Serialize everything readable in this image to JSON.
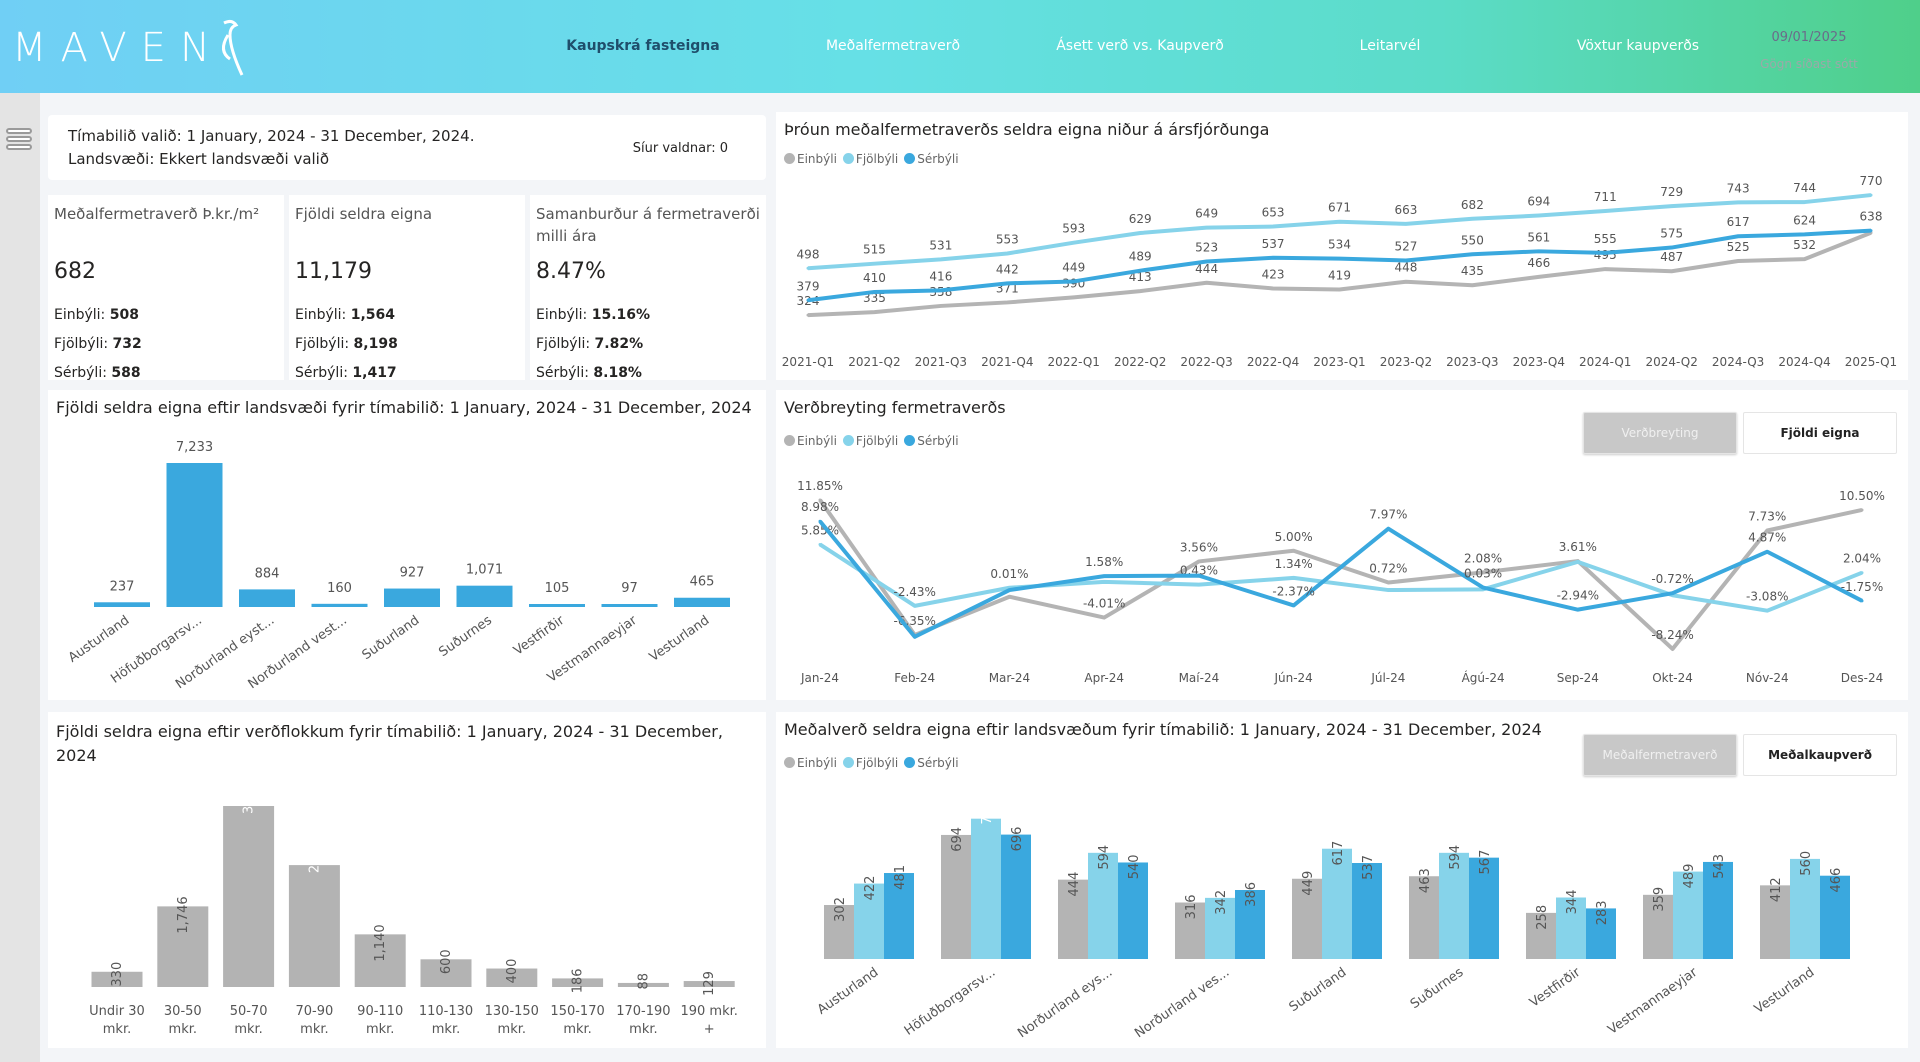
{
  "header": {
    "logo": "MAVEN",
    "nav": [
      {
        "label": "Kaupskrá fasteigna",
        "active": true
      },
      {
        "label": "Meðalfermetraverð"
      },
      {
        "label": "Ásett verð vs. Kaupverð"
      },
      {
        "label": "Leitarvél"
      },
      {
        "label": "Vöxtur kaupverðs"
      }
    ],
    "date": "09/01/2025",
    "date_caption": "Gögn síðast sótt"
  },
  "info": {
    "period": "Tímabilið valið: 1 January, 2024 - 31 December, 2024.",
    "region": "Landsvæði: Ekkert landsvæði valið",
    "filters": "Síur valdnar: 0"
  },
  "kpis": [
    {
      "title": "Meðalfermetraverð Þ.kr./m²",
      "value": "682",
      "rows": [
        {
          "k": "Einbýli:",
          "v": "508"
        },
        {
          "k": "Fjölbýli:",
          "v": "732"
        },
        {
          "k": "Sérbýli:",
          "v": "588"
        }
      ]
    },
    {
      "title": "Fjöldi seldra eigna",
      "value": "11,179",
      "rows": [
        {
          "k": "Einbýli:",
          "v": "1,564"
        },
        {
          "k": "Fjölbýli:",
          "v": "8,198"
        },
        {
          "k": "Sérbýli:",
          "v": "1,417"
        }
      ]
    },
    {
      "title": "Samanburður á fermetraverði milli ára",
      "value": "8.47%",
      "rows": [
        {
          "k": "Einbýli:",
          "v": "15.16%"
        },
        {
          "k": "Fjölbýli:",
          "v": "7.82%"
        },
        {
          "k": "Sérbýli:",
          "v": "8.18%"
        }
      ]
    }
  ],
  "colors": {
    "Einbýli": "#b4b4b4",
    "Fjölbýli": "#86d3ea",
    "Sérbýli": "#3aa8de",
    "bucket": "#b3b3b3"
  },
  "legend": [
    "Einbýli",
    "Fjölbýli",
    "Sérbýli"
  ],
  "toggles": {
    "change": {
      "on": "Verðbreyting",
      "off": "Fjöldi eigna"
    },
    "avg": {
      "on": "Meðalfermetraverð",
      "off": "Meðalkaupverð"
    }
  },
  "chart_data": [
    {
      "id": "quarterly",
      "type": "line",
      "title": "Þróun meðalfermetraverðs seldra eigna niður á ársfjórðunga",
      "categories": [
        "2021-Q1",
        "2021-Q2",
        "2021-Q3",
        "2021-Q4",
        "2022-Q1",
        "2022-Q2",
        "2022-Q3",
        "2022-Q4",
        "2023-Q1",
        "2023-Q2",
        "2023-Q3",
        "2023-Q4",
        "2024-Q1",
        "2024-Q2",
        "2024-Q3",
        "2024-Q4",
        "2025-Q1"
      ],
      "ylim": [
        250,
        800
      ],
      "legend": "top-left",
      "grid": false,
      "series": [
        {
          "name": "Einbýli",
          "values": [
            324,
            335,
            358,
            371,
            390,
            413,
            444,
            423,
            419,
            448,
            435,
            466,
            495,
            487,
            525,
            532,
            630
          ],
          "labels": [
            "324",
            "335",
            "358",
            "371",
            "390",
            "413",
            "444",
            "423",
            "419",
            "448",
            "435",
            "466",
            "495",
            "487",
            "525",
            "532",
            null
          ]
        },
        {
          "name": "Fjölbýli",
          "values": [
            498,
            515,
            531,
            553,
            593,
            629,
            649,
            653,
            671,
            663,
            682,
            694,
            711,
            729,
            743,
            744,
            770
          ]
        },
        {
          "name": "Sérbýli",
          "values": [
            379,
            410,
            416,
            442,
            449,
            489,
            523,
            537,
            534,
            527,
            550,
            561,
            555,
            575,
            617,
            624,
            638
          ]
        }
      ]
    },
    {
      "id": "monthly",
      "type": "line",
      "title": "Verðbreyting fermetraverðs",
      "categories": [
        "Jan-24",
        "Feb-24",
        "Mar-24",
        "Apr-24",
        "Maí-24",
        "Jún-24",
        "Júl-24",
        "Ágú-24",
        "Sep-24",
        "Okt-24",
        "Nóv-24",
        "Des-24"
      ],
      "ylim": [
        -10,
        14
      ],
      "unit": "%",
      "legend": "top-left",
      "grid": false,
      "series": [
        {
          "name": "Einbýli",
          "values": [
            11.85,
            -6.35,
            -1.2,
            -4.01,
            3.56,
            5.0,
            0.72,
            2.08,
            3.61,
            -8.24,
            7.73,
            10.5
          ],
          "labels": [
            "11.85%",
            "-6.35%",
            null,
            "-4.01%",
            "3.56%",
            "5.00%",
            "0.72%",
            "2.08%",
            "3.61%",
            "-8.24%",
            "7.73%",
            "10.50%"
          ]
        },
        {
          "name": "Fjölbýli",
          "values": [
            5.85,
            -2.43,
            0.01,
            0.8,
            0.43,
            1.34,
            -0.3,
            -0.2,
            3.5,
            -1.0,
            -3.08,
            2.04
          ],
          "labels": [
            "5.85%",
            "-2.43%",
            "0.01%",
            null,
            "0.43%",
            "1.34%",
            null,
            null,
            null,
            null,
            "-3.08%",
            "2.04%"
          ]
        },
        {
          "name": "Sérbýli",
          "values": [
            8.98,
            -6.6,
            -0.3,
            1.58,
            1.65,
            -2.37,
            7.97,
            0.03,
            -2.94,
            -0.72,
            4.87,
            -1.75
          ],
          "labels": [
            "8.98%",
            null,
            null,
            "1.58%",
            null,
            "-2.37%",
            "7.97%",
            "0.03%",
            "-2.94%",
            "-0.72%",
            "4.87%",
            "-1.75%"
          ]
        }
      ]
    },
    {
      "id": "regionCount",
      "type": "bar",
      "title": "Fjöldi seldra eigna eftir landsvæði fyrir tímabilið: 1 January, 2024 - 31 December, 2024",
      "categories": [
        "Austurland",
        "Höfuðborgarsv...",
        "Norðurland eyst...",
        "Norðurland vest...",
        "Suðurland",
        "Suðurnes",
        "Vestfirðir",
        "Vestmannaeyjar",
        "Vesturland"
      ],
      "values": [
        237,
        7233,
        884,
        160,
        927,
        1071,
        105,
        97,
        465
      ],
      "labels": [
        "237",
        "7,233",
        "884",
        "160",
        "927",
        "1,071",
        "105",
        "97",
        "465"
      ],
      "ylim": [
        0,
        7233
      ]
    },
    {
      "id": "priceBuckets",
      "type": "bar",
      "title": "Fjöldi seldra eigna eftir verðflokkum fyrir tímabilið: 1 January, 2024 - 31 December, 2024",
      "categories": [
        [
          "Undir 30",
          "mkr."
        ],
        [
          "30-50",
          "mkr."
        ],
        [
          "50-70",
          "mkr."
        ],
        [
          "70-90",
          "mkr."
        ],
        [
          "90-110",
          "mkr."
        ],
        [
          "110-130",
          "mkr."
        ],
        [
          "130-150",
          "mkr."
        ],
        [
          "150-170",
          "mkr."
        ],
        [
          "170-190",
          "mkr."
        ],
        [
          "190 mkr.",
          "+"
        ]
      ],
      "values": [
        330,
        1746,
        3920,
        2640,
        1140,
        600,
        400,
        186,
        88,
        129
      ],
      "labels": [
        "330",
        "1,746",
        "3,920",
        "2,640",
        "1,140",
        "600",
        "400",
        "186",
        "88",
        "129"
      ],
      "ylim": [
        0,
        3920
      ]
    },
    {
      "id": "regionAvg",
      "type": "bar",
      "title": "Meðalverð seldra eigna eftir landsvæðum fyrir tímabilið: 1 January, 2024 - 31 December, 2024",
      "categories": [
        "Austurland",
        "Höfuðborgarsv...",
        "Norðurland eys...",
        "Norðurland ves...",
        "Suðurland",
        "Suðurnes",
        "Vestfirðir",
        "Vestmannaeyjar",
        "Vesturland"
      ],
      "ylim": [
        0,
        800
      ],
      "legend": "top-left",
      "series": [
        {
          "name": "Einbýli",
          "values": [
            302,
            694,
            444,
            316,
            449,
            463,
            258,
            359,
            412
          ]
        },
        {
          "name": "Fjölbýli",
          "values": [
            422,
            785,
            594,
            342,
            617,
            594,
            344,
            489,
            560
          ]
        },
        {
          "name": "Sérbýli",
          "values": [
            481,
            696,
            540,
            386,
            537,
            567,
            283,
            543,
            466
          ]
        }
      ]
    }
  ]
}
